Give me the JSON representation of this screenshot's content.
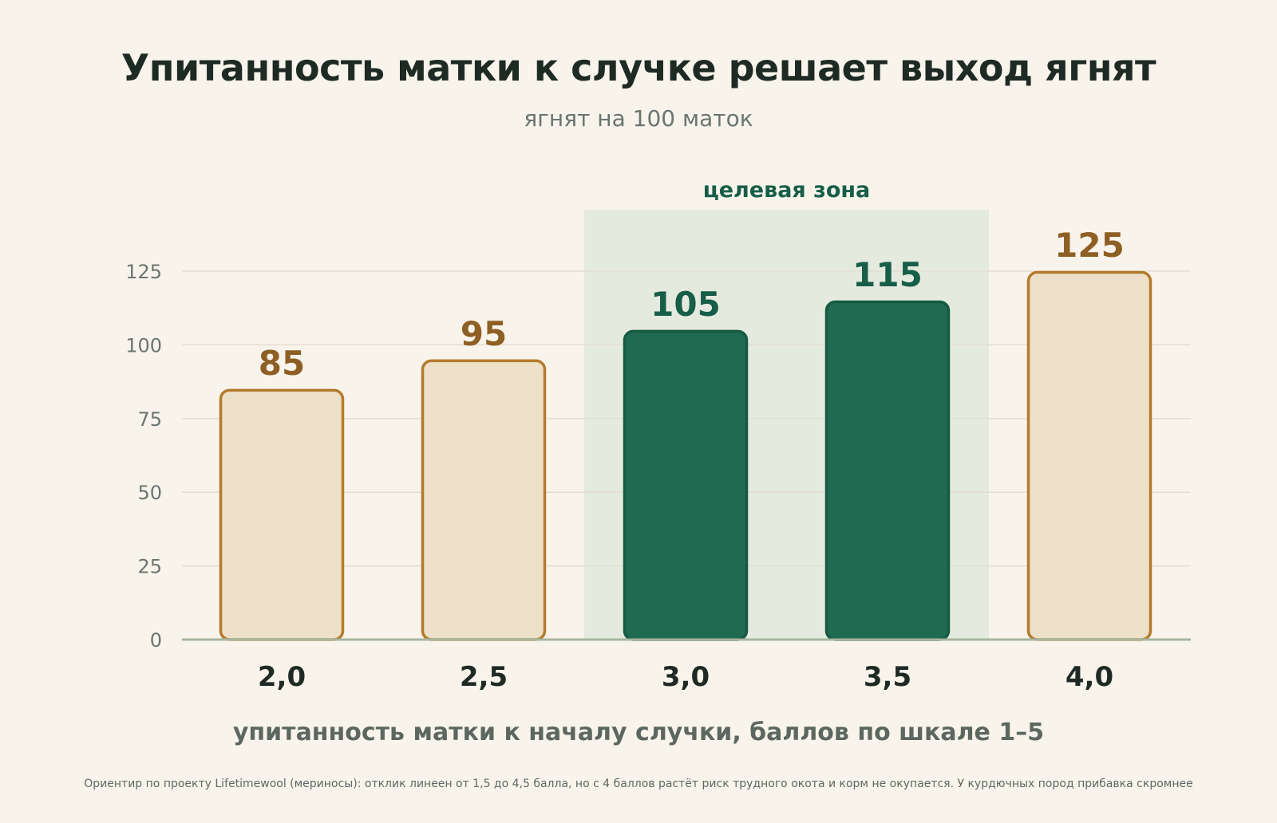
{
  "chart_data": {
    "type": "bar",
    "title": "Упитанность матки к случке решает выход ягнят",
    "subtitle": "ягнят на 100 маток",
    "xlabel": "упитанность матки к началу случки, баллов по шкале 1–5",
    "ylabel": "",
    "categories": [
      "2,0",
      "2,5",
      "3,0",
      "3,5",
      "4,0"
    ],
    "values": [
      85,
      95,
      105,
      115,
      125
    ],
    "value_labels": [
      "85",
      "95",
      "105",
      "115",
      "125"
    ],
    "ylim": [
      0,
      125
    ],
    "yticks": [
      0,
      25,
      50,
      75,
      100,
      125
    ],
    "ytick_labels": [
      "0",
      "25",
      "50",
      "75",
      "100",
      "125"
    ],
    "grid": true,
    "highlight": {
      "label": "целевая зона",
      "categories": [
        "3,0",
        "3,5"
      ]
    },
    "colors": {
      "normal_fill": "#ede0c8",
      "normal_stroke": "#b47a2c",
      "normal_label": "#8e5f24",
      "target_fill": "#216a52",
      "target_stroke": "#165a43",
      "target_label": "#165e48",
      "target_zone": "#e5eadf",
      "grid": "#e3ddd0",
      "baseline": "#a7b69f"
    }
  },
  "footnote": "Ориентир по проекту Lifetimewool (мериносы): отклик линеен от 1,5 до 4,5 балла, но с 4 баллов растёт риск трудного окота и корм не окупается. У курдючных пород прибавка скромнее"
}
